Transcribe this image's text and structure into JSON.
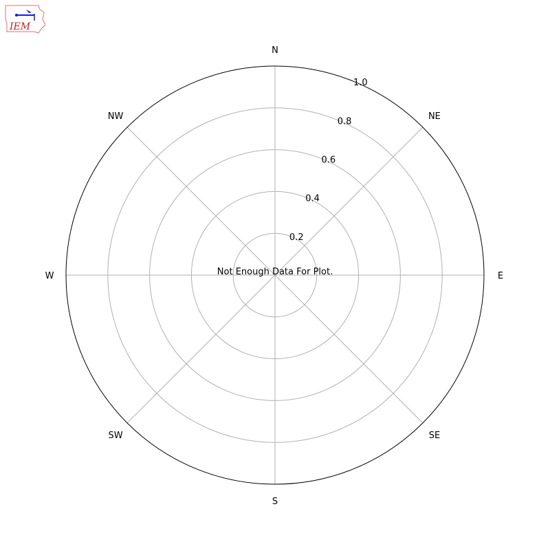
{
  "logo": {
    "text": "IEM"
  },
  "chart_data": {
    "type": "polar",
    "title": "",
    "theta_labels": [
      "N",
      "NE",
      "E",
      "SE",
      "S",
      "SW",
      "W",
      "NW"
    ],
    "r_ticks": [
      "0.2",
      "0.4",
      "0.6",
      "0.8",
      "1.0"
    ],
    "r_tick_values": [
      0.2,
      0.4,
      0.6,
      0.8,
      1.0
    ],
    "rlim": [
      0,
      1.0
    ],
    "grid": true,
    "series": [],
    "annotation": "Not Enough Data For Plot.",
    "colors": {
      "grid": "#b0b0b0",
      "frame": "#000000"
    }
  }
}
